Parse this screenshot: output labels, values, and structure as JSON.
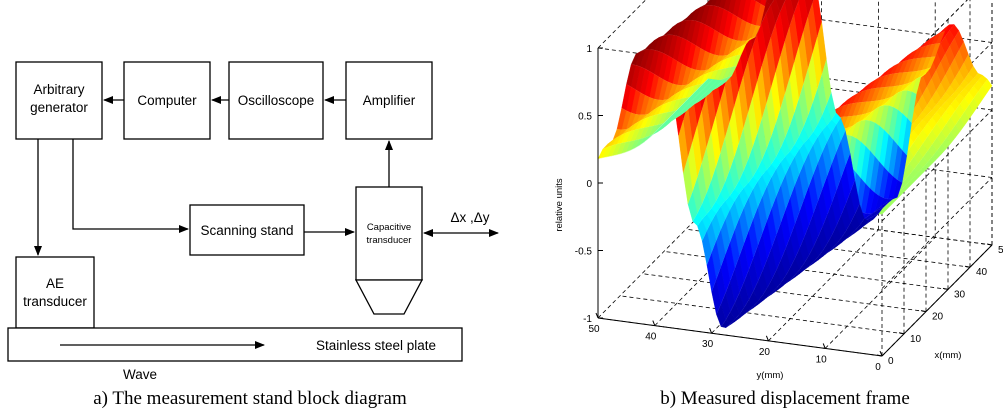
{
  "block_diagram": {
    "arbitrary_generator": [
      "Arbitrary",
      "generator"
    ],
    "computer": "Computer",
    "oscilloscope": "Oscilloscope",
    "amplifier": "Amplifier",
    "scanning_stand": "Scanning stand",
    "capacitive_transducer": [
      "Capacitive",
      "transducer"
    ],
    "ae_transducer": [
      "AE",
      "transducer"
    ],
    "plate": "Stainless steel plate",
    "wave": "Wave",
    "displacement": "Δx ,Δy",
    "caption": "a) The measurement stand block diagram"
  },
  "surface_plot": {
    "caption": "b) Measured displacement frame",
    "zlabel": "relative units",
    "xlabel": "x(mm)",
    "ylabel": "y(mm)",
    "z_ticks": [
      "1",
      "0.5",
      "0",
      "-0.5",
      "-1"
    ],
    "y_ticks": [
      "50",
      "40",
      "30",
      "20",
      "10",
      "0"
    ],
    "x_ticks": [
      "0",
      "10",
      "20",
      "30",
      "40",
      "50"
    ],
    "colormap": [
      "#00008f",
      "#0000ff",
      "#00ffff",
      "#ffff00",
      "#ff0000",
      "#800000"
    ]
  },
  "chart_data": {
    "type": "surface",
    "title": "",
    "xlabel": "x(mm)",
    "ylabel": "y(mm)",
    "zlabel": "relative units",
    "xlim": [
      0,
      50
    ],
    "ylim": [
      0,
      50
    ],
    "zlim": [
      -1,
      1
    ],
    "grid": true,
    "description_of_surface": "single wave period along y, roughly constant along x",
    "profile_y": [
      0,
      5,
      10,
      15,
      20,
      25,
      30,
      35,
      40,
      45,
      50
    ],
    "profile_z": [
      0.05,
      0.25,
      0.6,
      0.2,
      -0.75,
      -0.95,
      -0.2,
      0.85,
      1.0,
      0.3,
      -0.05
    ]
  }
}
